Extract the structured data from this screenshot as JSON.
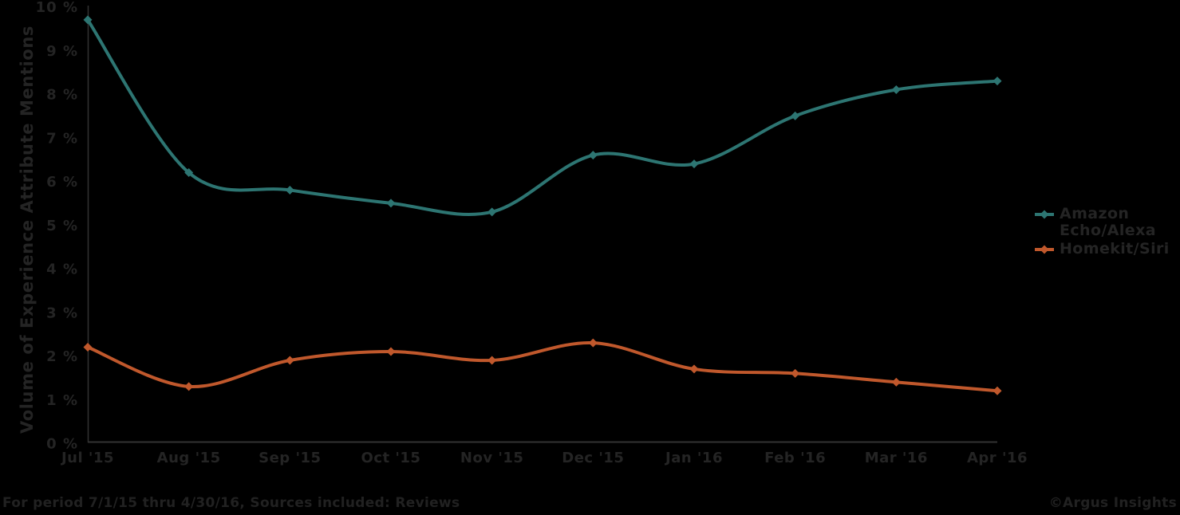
{
  "chart_data": {
    "type": "line",
    "title": "",
    "categories": [
      "Jul '15",
      "Aug '15",
      "Sep '15",
      "Oct '15",
      "Nov '15",
      "Dec '15",
      "Jan '16",
      "Feb '16",
      "Mar '16",
      "Apr '16"
    ],
    "series": [
      {
        "name": "Amazon Echo/Alexa",
        "color": "#2d7572",
        "values": [
          9.7,
          6.2,
          5.8,
          5.5,
          5.3,
          6.6,
          6.4,
          7.5,
          8.1,
          8.3
        ]
      },
      {
        "name": "Homekit/Siri",
        "color": "#c0582c",
        "values": [
          2.2,
          1.3,
          1.9,
          2.1,
          1.9,
          2.3,
          1.7,
          1.6,
          1.4,
          1.2
        ]
      }
    ],
    "xlabel": "",
    "ylabel": "Volume of Experience Attribute Mentions",
    "ylim": [
      0,
      10
    ],
    "ytick_labels": [
      "0 %",
      "1 %",
      "2 %",
      "3 %",
      "4 %",
      "5 %",
      "6 %",
      "7 %",
      "8 %",
      "9 %",
      "10 %"
    ],
    "grid": false,
    "legend_position": "right",
    "line_shape": "spline",
    "marker": "diamond"
  },
  "legend": {
    "items": [
      {
        "label": "Amazon Echo/Alexa",
        "color": "#2d7572"
      },
      {
        "label": "Homekit/Siri",
        "color": "#c0582c"
      }
    ]
  },
  "footer": {
    "note": "For period 7/1/15 thru 4/30/16, Sources included: Reviews",
    "credit": "©Argus Insights"
  },
  "colors": {
    "background": "#000000",
    "text": "#242424",
    "axis": "#323232"
  }
}
